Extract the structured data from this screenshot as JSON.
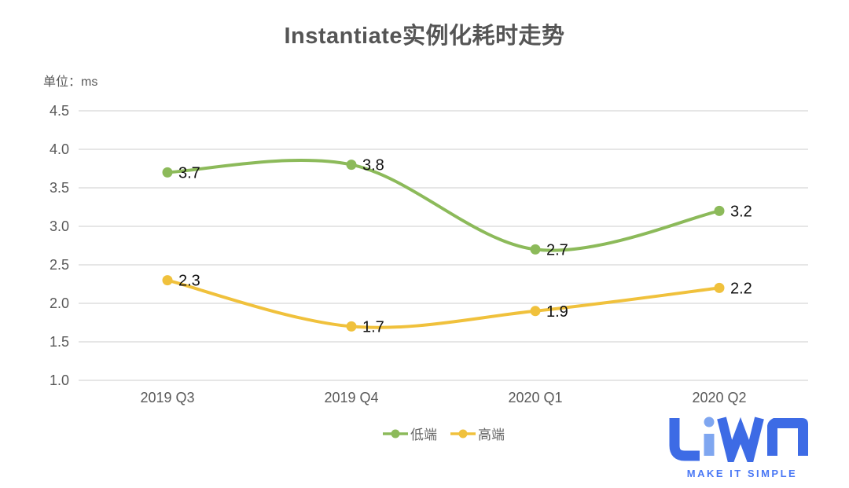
{
  "chart_data": {
    "type": "line",
    "title": "Instantiate实例化耗时走势",
    "unit_label": "单位：ms",
    "categories": [
      "2019 Q3",
      "2019 Q4",
      "2020 Q1",
      "2020 Q2"
    ],
    "series": [
      {
        "name": "低端",
        "color": "#8CBA5A",
        "values": [
          3.7,
          3.8,
          2.7,
          3.2
        ]
      },
      {
        "name": "高端",
        "color": "#F0C13C",
        "values": [
          2.3,
          1.7,
          1.9,
          2.2
        ]
      }
    ],
    "ylim": [
      1.0,
      4.5
    ],
    "ytick_step": 0.5,
    "ytick_labels": [
      "4.5",
      "4.0",
      "3.5",
      "3.0",
      "2.5",
      "2.0",
      "1.5",
      "1.0"
    ],
    "grid": "horizontal-only",
    "smooth": true,
    "point_labels_visible": true,
    "legend_position": "bottom-center"
  },
  "brand": {
    "wordmark": "LiWA",
    "tagline": "MAKE IT SIMPLE",
    "primary_color": "#3D6BE5",
    "light_color": "#7FA6F0",
    "tagline_color": "#4A78F5"
  },
  "colors": {
    "title_text": "#555555",
    "axis_text": "#595959",
    "gridline": "#E6E6E6",
    "point_label_text": "#111111",
    "background": "#FFFFFF"
  }
}
